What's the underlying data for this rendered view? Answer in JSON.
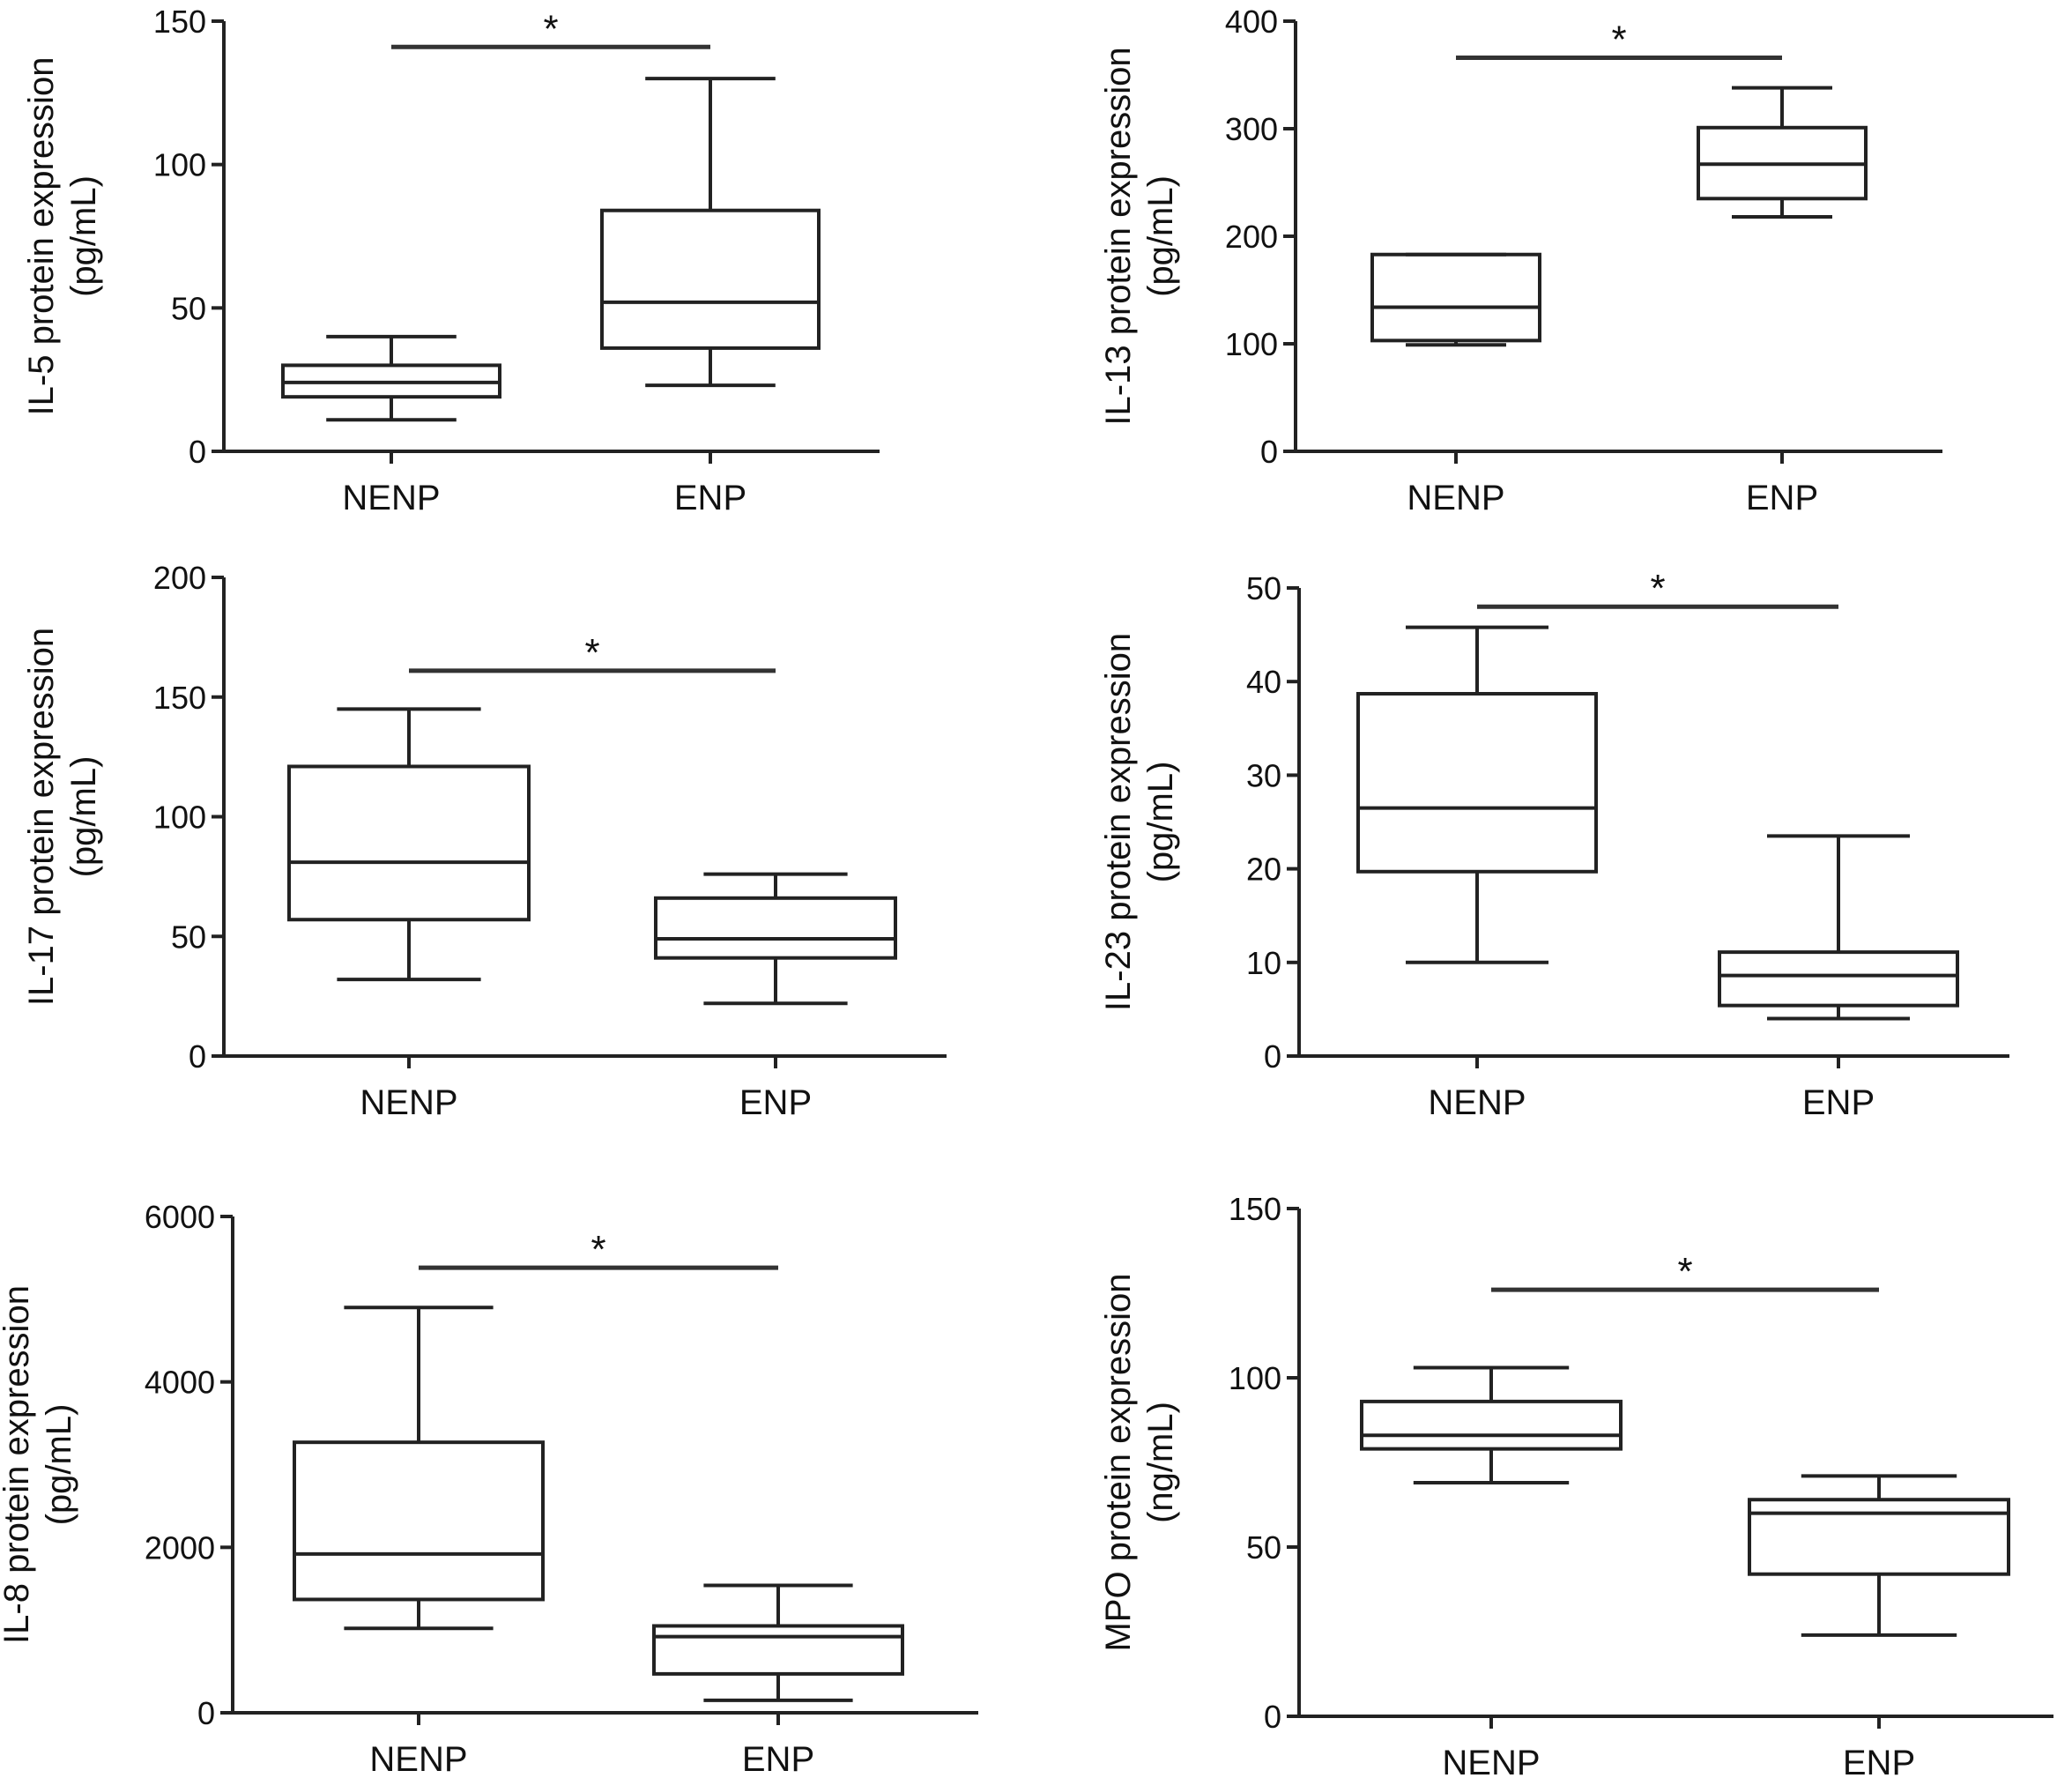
{
  "chart_data": [
    {
      "type": "box",
      "ylabel_line1": "IL-5 protein expression",
      "ylabel_line2": "(pg/mL)",
      "ylim": [
        0,
        150
      ],
      "yticks": [
        0,
        50,
        100,
        150
      ],
      "categories": [
        "NENP",
        "ENP"
      ],
      "boxes": [
        {
          "group": "NENP",
          "min": 11,
          "q1": 19,
          "median": 24,
          "q3": 30,
          "max": 40
        },
        {
          "group": "ENP",
          "min": 23,
          "q1": 36,
          "median": 52,
          "q3": 84,
          "max": 130
        }
      ],
      "significance": {
        "label": "*",
        "y": 141
      }
    },
    {
      "type": "box",
      "ylabel_line1": "IL-13 protein expression",
      "ylabel_line2": "(pg/mL)",
      "ylim": [
        0,
        400
      ],
      "yticks": [
        0,
        100,
        200,
        300,
        400
      ],
      "categories": [
        "NENP",
        "ENP"
      ],
      "boxes": [
        {
          "group": "NENP",
          "min": 99,
          "q1": 103,
          "median": 134,
          "q3": 183,
          "max": 183
        },
        {
          "group": "ENP",
          "min": 218,
          "q1": 235,
          "median": 267,
          "q3": 301,
          "max": 338
        }
      ],
      "significance": {
        "label": "*",
        "y": 366
      }
    },
    {
      "type": "box",
      "ylabel_line1": "IL-17 protein expression",
      "ylabel_line2": "(pg/mL)",
      "ylim": [
        0,
        200
      ],
      "yticks": [
        0,
        50,
        100,
        150,
        200
      ],
      "categories": [
        "NENP",
        "ENP"
      ],
      "boxes": [
        {
          "group": "NENP",
          "min": 32,
          "q1": 57,
          "median": 81,
          "q3": 121,
          "max": 145
        },
        {
          "group": "ENP",
          "min": 22,
          "q1": 41,
          "median": 49,
          "q3": 66,
          "max": 76
        }
      ],
      "significance": {
        "label": "*",
        "y": 161
      }
    },
    {
      "type": "box",
      "ylabel_line1": "IL-23 protein expression",
      "ylabel_line2": "(pg/mL)",
      "ylim": [
        0,
        50
      ],
      "yticks": [
        0,
        10,
        20,
        30,
        40,
        50
      ],
      "categories": [
        "NENP",
        "ENP"
      ],
      "boxes": [
        {
          "group": "NENP",
          "min": 10,
          "q1": 19.7,
          "median": 26.5,
          "q3": 38.7,
          "max": 45.8
        },
        {
          "group": "ENP",
          "min": 4,
          "q1": 5.4,
          "median": 8.6,
          "q3": 11.1,
          "max": 23.5
        }
      ],
      "significance": {
        "label": "*",
        "y": 48
      }
    },
    {
      "type": "box",
      "ylabel_line1": "IL-8 protein expression",
      "ylabel_line2": "(pg/mL)",
      "ylim": [
        0,
        6000
      ],
      "yticks": [
        0,
        2000,
        4000,
        6000
      ],
      "categories": [
        "NENP",
        "ENP"
      ],
      "boxes": [
        {
          "group": "NENP",
          "min": 1020,
          "q1": 1370,
          "median": 1920,
          "q3": 3270,
          "max": 4900
        },
        {
          "group": "ENP",
          "min": 150,
          "q1": 470,
          "median": 920,
          "q3": 1050,
          "max": 1540
        }
      ],
      "significance": {
        "label": "*",
        "y": 5380
      }
    },
    {
      "type": "box",
      "ylabel_line1": "MPO protein expression",
      "ylabel_line2": "(ng/mL)",
      "ylim": [
        0,
        150
      ],
      "yticks": [
        0,
        50,
        100,
        150
      ],
      "categories": [
        "NENP",
        "ENP"
      ],
      "boxes": [
        {
          "group": "NENP",
          "min": 69,
          "q1": 79,
          "median": 83,
          "q3": 93,
          "max": 103
        },
        {
          "group": "ENP",
          "min": 24,
          "q1": 42,
          "median": 60,
          "q3": 64,
          "max": 71
        }
      ],
      "significance": {
        "label": "*",
        "y": 126
      }
    }
  ]
}
